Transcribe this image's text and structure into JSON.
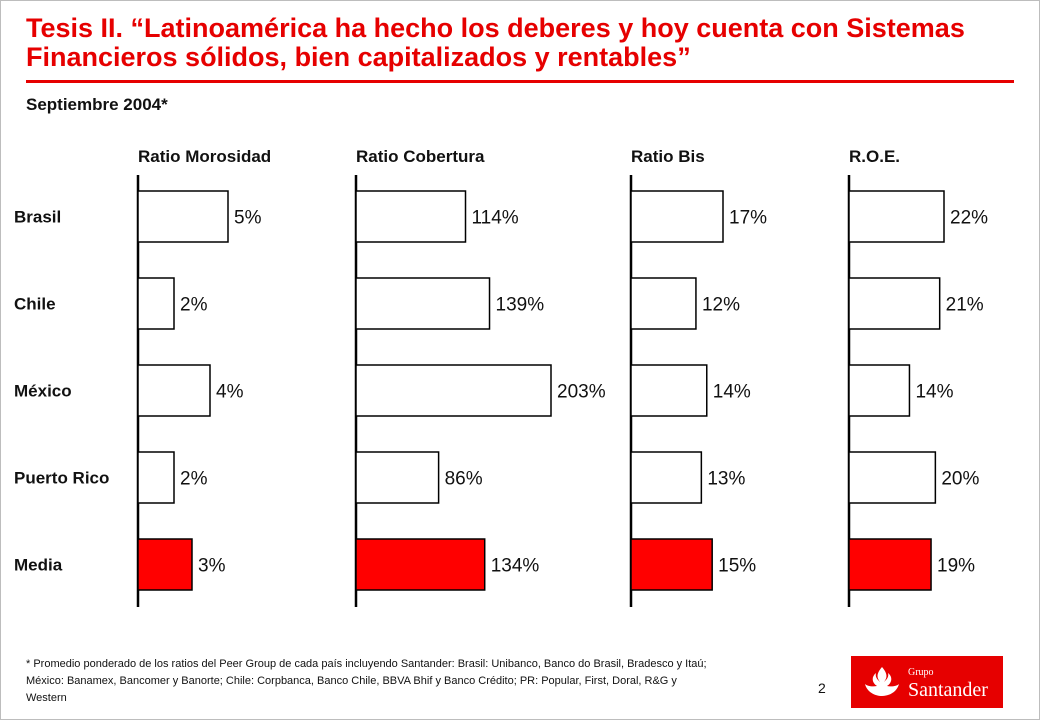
{
  "title": "Tesis II. “Latinoamérica ha hecho los deberes y hoy cuenta con Sistemas Financieros sólidos, bien capitalizados y rentables”",
  "subtitle": "Septiembre 2004*",
  "footnote": "* Promedio ponderado de los ratios del Peer Group de cada país incluyendo Santander: Brasil:  Unibanco, Banco do Brasil, Bradesco y Itaú; México: Banamex, Bancomer y Banorte; Chile:  Corpbanca, Banco Chile, BBVA Bhif y Banco Crédito; PR: Popular, First, Doral, R&G y Western",
  "page_number": "2",
  "logo": {
    "grupo": "Grupo",
    "name": "Santander"
  },
  "colors": {
    "accent": "#e60000",
    "bar_fill": "#ffffff",
    "bar_highlight": "#ff0000",
    "bar_stroke": "#000000"
  },
  "chart_data": {
    "type": "bar",
    "orientation": "horizontal",
    "categories": [
      "Brasil",
      "Chile",
      "México",
      "Puerto Rico",
      "Media"
    ],
    "highlight_category": "Media",
    "unit": "%",
    "panels": [
      {
        "title": "Ratio Morosidad",
        "values": [
          5,
          2,
          4,
          2,
          3
        ],
        "labels": [
          "5%",
          "2%",
          "4%",
          "2%",
          "3%"
        ]
      },
      {
        "title": "Ratio Cobertura",
        "values": [
          114,
          139,
          203,
          86,
          134
        ],
        "labels": [
          "114%",
          "139%",
          "203%",
          "86%",
          "134%"
        ]
      },
      {
        "title": "Ratio Bis",
        "values": [
          17,
          12,
          14,
          13,
          15
        ],
        "labels": [
          "17%",
          "12%",
          "14%",
          "13%",
          "15%"
        ]
      },
      {
        "title": "R.O.E.",
        "values": [
          22,
          21,
          14,
          20,
          19
        ],
        "labels": [
          "22%",
          "21%",
          "14%",
          "20%",
          "19%"
        ]
      }
    ]
  }
}
